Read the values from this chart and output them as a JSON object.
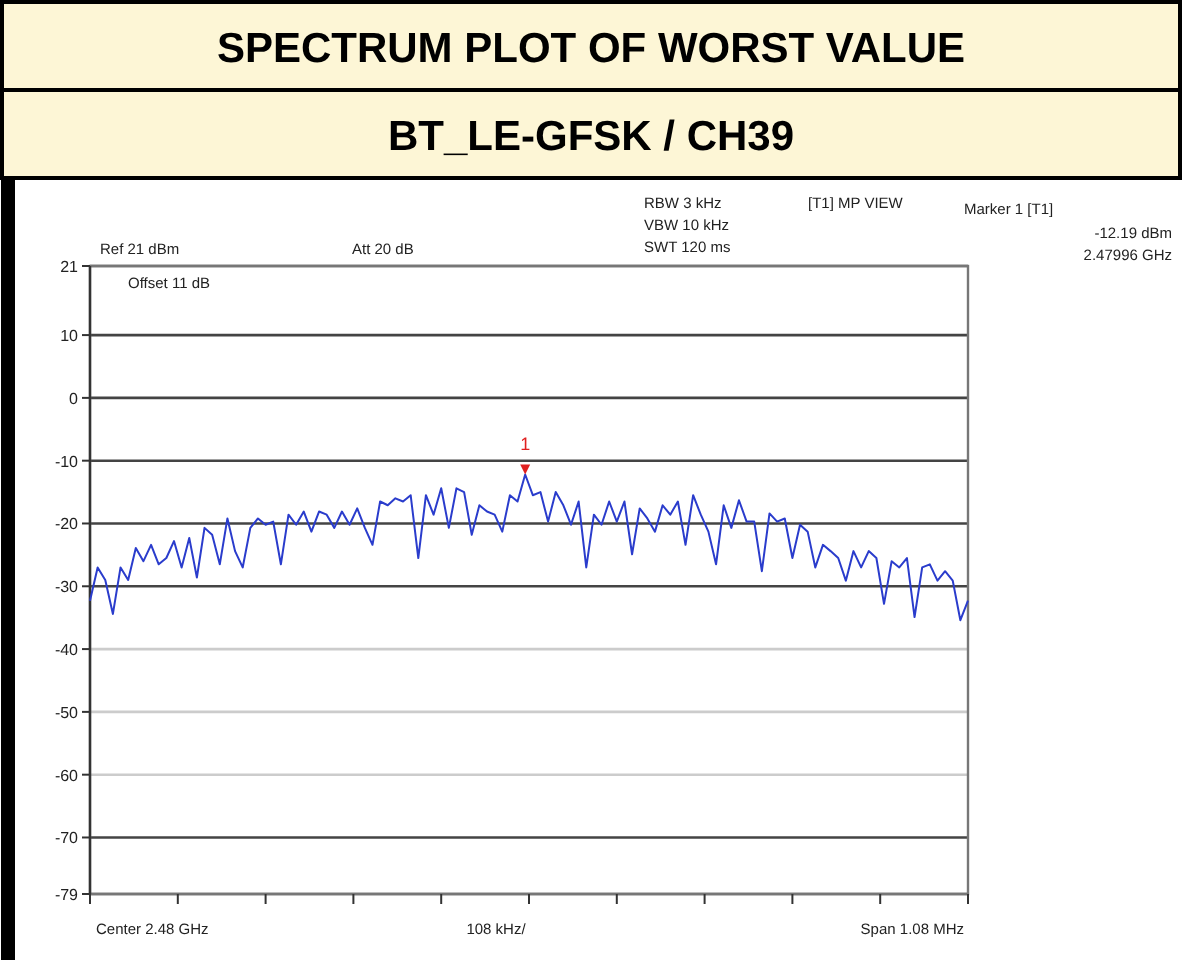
{
  "chart_data": {
    "type": "line",
    "title": "SPECTRUM PLOT OF WORST VALUE",
    "subtitle": "BT_LE-GFSK / CH39",
    "annotations": [
      "Ref 21 dBm",
      "Att 20 dB",
      "RBW 3 kHz",
      "VBW 10 kHz",
      "SWT 120 ms",
      "[T1] MP VIEW",
      "Marker 1 [T1]",
      "-12.19 dBm",
      "2.47996 GHz",
      "Offset 11 dB",
      "Center 2.48 GHz",
      "108 kHz/",
      "Span 1.08 MHz",
      {
        "text": "1",
        "y": -12.19
      }
    ],
    "categories": [
      null,
      null,
      null,
      null,
      null,
      null,
      null,
      null,
      null,
      null,
      null,
      null,
      null,
      null,
      null,
      null,
      null,
      null,
      null,
      null,
      null,
      null,
      null,
      null,
      null,
      null,
      null,
      null,
      null,
      null,
      null,
      null,
      null,
      null,
      null,
      null,
      null,
      null,
      null,
      null,
      null,
      null,
      null,
      null,
      null,
      null,
      null,
      null,
      null,
      null,
      null,
      null,
      null,
      null,
      null,
      null,
      null,
      null,
      null,
      null,
      null,
      null,
      null,
      null,
      null,
      null,
      null,
      null,
      null,
      null,
      null,
      null,
      null,
      null,
      null,
      null,
      null,
      null,
      null,
      null,
      null,
      null,
      null,
      null,
      null,
      null,
      null,
      null,
      null,
      null,
      null,
      null,
      null,
      null,
      null,
      null,
      null,
      null,
      null,
      null,
      null,
      null,
      null,
      null,
      null,
      null,
      null,
      null,
      null,
      null,
      null,
      null,
      null,
      null,
      null,
      null
    ],
    "series": [
      {
        "color": "#2a3ccc",
        "values": [
          -32.3,
          -27,
          -29,
          -34.4,
          -27,
          -29,
          -23.9,
          -26,
          -23.4,
          -26.5,
          -25.5,
          -22.8,
          -27,
          -22.3,
          -28.6,
          -20.7,
          -21.8,
          -26.5,
          -19.2,
          -24.4,
          -27,
          -20.7,
          -19.2,
          -20.2,
          -19.7,
          -26.5,
          -18.6,
          -20.2,
          -18.1,
          -21.3,
          -18.1,
          -18.6,
          -20.7,
          -18.1,
          -20.2,
          -17.6,
          -20.7,
          -23.4,
          -16.5,
          -17.1,
          -16,
          -16.5,
          -15.5,
          -25.5,
          -15.5,
          -18.6,
          -14.4,
          -20.7,
          -14.4,
          -15,
          -21.8,
          -17.1,
          -18.1,
          -18.6,
          -21.3,
          -15.5,
          -16.5,
          -12.2,
          -15.5,
          -15,
          -19.7,
          -15,
          -17.1,
          -20.2,
          -16.5,
          -27,
          -18.6,
          -20.2,
          -16.5,
          -19.7,
          -16.5,
          -24.9,
          -17.6,
          -19.2,
          -21.3,
          -17.1,
          -18.6,
          -16.5,
          -23.4,
          -15.5,
          -18.6,
          -21.3,
          -26.5,
          -17.1,
          -20.7,
          -16.3,
          -19.7,
          -19.7,
          -27.6,
          -18.4,
          -19.7,
          -19.2,
          -25.5,
          -20.2,
          -21.3,
          -27,
          -23.4,
          -24.4,
          -25.5,
          -29.1,
          -24.4,
          -27,
          -24.4,
          -25.5,
          -32.8,
          -26,
          -27,
          -25.5,
          -34.9,
          -27,
          -26.5,
          -29.1,
          -27.6,
          -29.1,
          -35.4,
          -32.3
        ]
      }
    ],
    "ylim": [
      -79,
      21
    ],
    "yticks": [
      21,
      10,
      0,
      -10,
      -20,
      -30,
      -40,
      -50,
      -60,
      -70,
      -79
    ],
    "grid": "y",
    "marker": "none",
    "line_style": "solid"
  }
}
